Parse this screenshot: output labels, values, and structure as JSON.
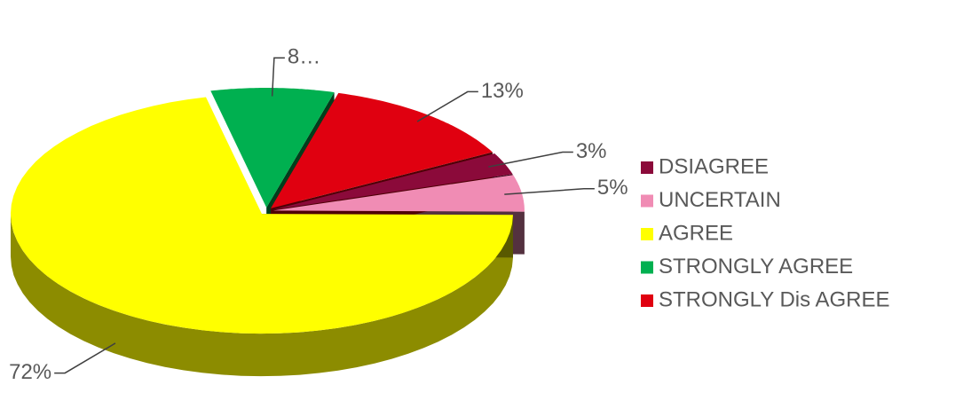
{
  "chart_data": {
    "type": "pie",
    "pie3d": true,
    "categories": [
      "DSIAGREE",
      "UNCERTAIN",
      "AGREE",
      "STRONGLY AGREE",
      "STRONGLY Dis AGREE"
    ],
    "values": [
      3,
      5,
      72,
      8,
      13
    ],
    "value_labels": [
      "3%",
      "5%",
      "72%",
      "8…",
      "13%"
    ],
    "colors": [
      "#8b0a3a",
      "#f08cb4",
      "#ffff00",
      "#00b050",
      "#e00010"
    ],
    "legend": "right"
  }
}
